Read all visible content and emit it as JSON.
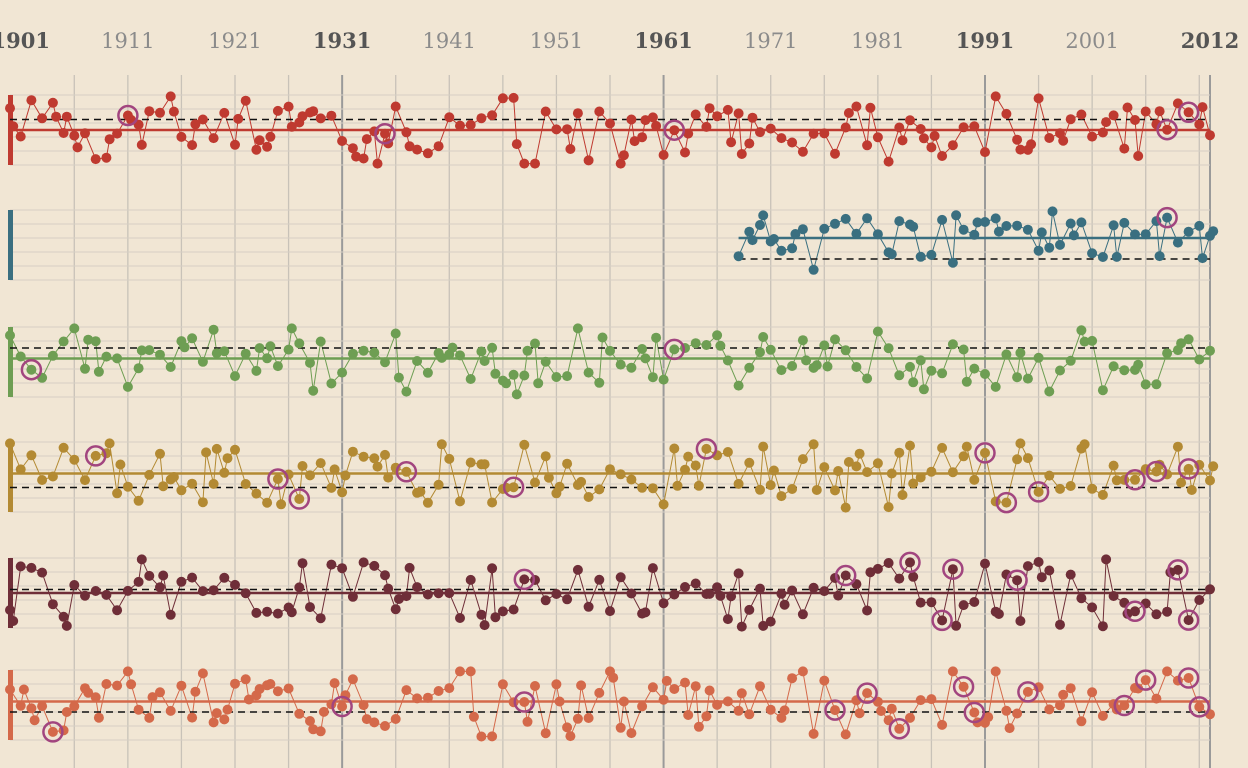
{
  "chart_data": {
    "type": "scatter",
    "title": "",
    "xlabel": "",
    "ylabel": "",
    "x_range": [
      1900,
      2012
    ],
    "year_labels": [
      {
        "year": 1901,
        "text": "1901",
        "major": true
      },
      {
        "year": 1911,
        "text": "1911",
        "major": false
      },
      {
        "year": 1921,
        "text": "1921",
        "major": false
      },
      {
        "year": 1931,
        "text": "1931",
        "major": true
      },
      {
        "year": 1941,
        "text": "1941",
        "major": false
      },
      {
        "year": 1951,
        "text": "1951",
        "major": false
      },
      {
        "year": 1961,
        "text": "1961",
        "major": true
      },
      {
        "year": 1971,
        "text": "1971",
        "major": false
      },
      {
        "year": 1981,
        "text": "1981",
        "major": false
      },
      {
        "year": 1991,
        "text": "1991",
        "major": true
      },
      {
        "year": 2001,
        "text": "2001",
        "major": false
      },
      {
        "year": 2012,
        "text": "2012",
        "major": true
      }
    ],
    "gridlines": true,
    "highlight_color": "#a2457f",
    "series": [
      {
        "color": "#bf3a30",
        "start": 1900,
        "mean": 0.5,
        "ref": 0.65,
        "seed": 3,
        "spread": 0.8,
        "highlights": [
          1911,
          1935,
          1962,
          2008,
          2010
        ]
      },
      {
        "color": "#3a6f80",
        "start": 1968,
        "mean": 0.6,
        "ref": 0.3,
        "seed": 11,
        "spread": 0.7,
        "highlights": [
          2008
        ]
      },
      {
        "color": "#6e9e53",
        "start": 1900,
        "mean": 0.55,
        "ref": 0.7,
        "seed": 23,
        "spread": 0.8,
        "highlights": [
          1902,
          1962
        ]
      },
      {
        "color": "#b38a33",
        "start": 1900,
        "mean": 0.55,
        "ref": 0.35,
        "seed": 37,
        "spread": 0.8,
        "highlights": [
          1908,
          1925,
          1927,
          1937,
          1947,
          1965,
          1991,
          1993,
          1996,
          2005,
          2007,
          2010
        ]
      },
      {
        "color": "#6f2e38",
        "start": 1900,
        "mean": 0.5,
        "ref": 0.55,
        "seed": 51,
        "spread": 0.8,
        "highlights": [
          1948,
          1978,
          1984,
          1987,
          1988,
          1994,
          2005,
          2009,
          2010
        ]
      },
      {
        "color": "#d4694a",
        "start": 1900,
        "mean": 0.55,
        "ref": 0.4,
        "seed": 67,
        "spread": 0.8,
        "highlights": [
          1904,
          1931,
          1948,
          1977,
          1980,
          1983,
          1989,
          1990,
          1995,
          2004,
          2006,
          2010,
          2011
        ]
      }
    ]
  }
}
